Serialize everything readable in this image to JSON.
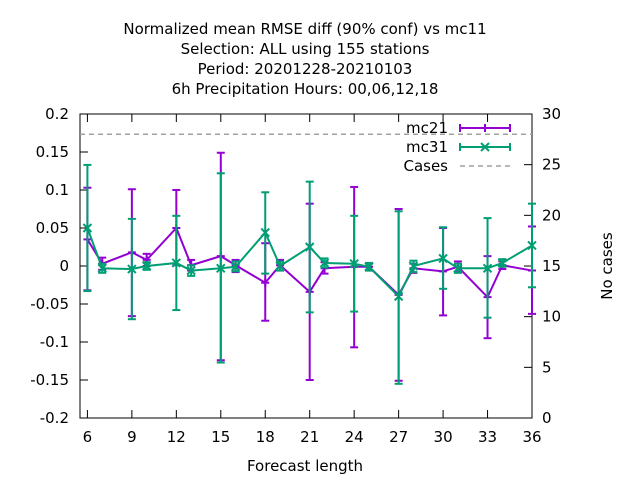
{
  "chart_data": {
    "type": "line",
    "title_lines": [
      "Normalized mean RMSE diff (90% conf) vs mc11",
      "Selection: ALL using   155 stations",
      "Period: 20201228-20210103",
      "6h Precipitation   Hours:  00,06,12,18"
    ],
    "xlabel": "Forecast length",
    "y2label": "No cases",
    "xlim": [
      5.5,
      36
    ],
    "ylim": [
      -0.2,
      0.2
    ],
    "y2lim": [
      0,
      30
    ],
    "x_ticks": [
      6,
      9,
      12,
      15,
      18,
      21,
      24,
      27,
      30,
      33,
      36
    ],
    "y_ticks": [
      -0.2,
      -0.15,
      -0.1,
      -0.05,
      0,
      0.05,
      0.1,
      0.15,
      0.2
    ],
    "y_tick_labels": [
      "-0.2",
      "-0.15",
      "-0.1",
      "-0.05",
      "0",
      "0.05",
      "0.1",
      "0.15",
      "0.2"
    ],
    "y2_ticks": [
      0,
      5,
      10,
      15,
      20,
      25,
      30
    ],
    "legend_position": "top-right",
    "grid": false,
    "series": [
      {
        "name": "mc21",
        "color": "#9400d3",
        "marker": "plus",
        "points": [
          {
            "x": 6,
            "y": 0.035,
            "lo": -0.032,
            "hi": 0.103
          },
          {
            "x": 7,
            "y": 0.003,
            "lo": -0.005,
            "hi": 0.011
          },
          {
            "x": 9,
            "y": 0.018,
            "lo": -0.066,
            "hi": 0.101
          },
          {
            "x": 10,
            "y": 0.008,
            "lo": 0.0,
            "hi": 0.016
          },
          {
            "x": 12,
            "y": 0.05,
            "lo": 0.001,
            "hi": 0.1
          },
          {
            "x": 13,
            "y": 0.001,
            "lo": -0.006,
            "hi": 0.008
          },
          {
            "x": 15,
            "y": 0.013,
            "lo": -0.124,
            "hi": 0.149
          },
          {
            "x": 16,
            "y": 0.001,
            "lo": -0.008,
            "hi": 0.008
          },
          {
            "x": 18,
            "y": -0.022,
            "lo": -0.072,
            "hi": 0.03
          },
          {
            "x": 19,
            "y": 0.001,
            "lo": -0.006,
            "hi": 0.008
          },
          {
            "x": 21,
            "y": -0.034,
            "lo": -0.15,
            "hi": 0.082
          },
          {
            "x": 22,
            "y": -0.003,
            "lo": -0.01,
            "hi": 0.005
          },
          {
            "x": 24,
            "y": -0.001,
            "lo": -0.107,
            "hi": 0.104
          },
          {
            "x": 25,
            "y": -0.001,
            "lo": -0.006,
            "hi": 0.004
          },
          {
            "x": 27,
            "y": -0.038,
            "lo": -0.151,
            "hi": 0.075
          },
          {
            "x": 28,
            "y": -0.003,
            "lo": -0.009,
            "hi": 0.003
          },
          {
            "x": 30,
            "y": -0.007,
            "lo": -0.065,
            "hi": 0.05
          },
          {
            "x": 31,
            "y": -0.001,
            "lo": -0.008,
            "hi": 0.006
          },
          {
            "x": 33,
            "y": -0.041,
            "lo": -0.095,
            "hi": 0.013
          },
          {
            "x": 34,
            "y": 0.001,
            "lo": -0.004,
            "hi": 0.006
          },
          {
            "x": 36,
            "y": -0.006,
            "lo": -0.063,
            "hi": 0.052
          }
        ]
      },
      {
        "name": "mc31",
        "color": "#009e73",
        "marker": "x",
        "points": [
          {
            "x": 6,
            "y": 0.05,
            "lo": -0.033,
            "hi": 0.133
          },
          {
            "x": 7,
            "y": -0.003,
            "lo": -0.009,
            "hi": 0.003
          },
          {
            "x": 9,
            "y": -0.004,
            "lo": -0.07,
            "hi": 0.062
          },
          {
            "x": 10,
            "y": 0.0,
            "lo": -0.005,
            "hi": 0.005
          },
          {
            "x": 12,
            "y": 0.004,
            "lo": -0.058,
            "hi": 0.066
          },
          {
            "x": 13,
            "y": -0.006,
            "lo": -0.013,
            "hi": 0.001
          },
          {
            "x": 15,
            "y": -0.003,
            "lo": -0.127,
            "hi": 0.122
          },
          {
            "x": 16,
            "y": -0.001,
            "lo": -0.007,
            "hi": 0.006
          },
          {
            "x": 18,
            "y": 0.044,
            "lo": -0.01,
            "hi": 0.097
          },
          {
            "x": 19,
            "y": 0.0,
            "lo": -0.006,
            "hi": 0.006
          },
          {
            "x": 21,
            "y": 0.025,
            "lo": -0.061,
            "hi": 0.111
          },
          {
            "x": 22,
            "y": 0.004,
            "lo": -0.002,
            "hi": 0.01
          },
          {
            "x": 24,
            "y": 0.003,
            "lo": -0.06,
            "hi": 0.066
          },
          {
            "x": 25,
            "y": -0.001,
            "lo": -0.006,
            "hi": 0.004
          },
          {
            "x": 27,
            "y": -0.04,
            "lo": -0.155,
            "hi": 0.072
          },
          {
            "x": 28,
            "y": 0.0,
            "lo": -0.008,
            "hi": 0.007
          },
          {
            "x": 30,
            "y": 0.01,
            "lo": -0.03,
            "hi": 0.051
          },
          {
            "x": 31,
            "y": -0.003,
            "lo": -0.009,
            "hi": 0.003
          },
          {
            "x": 33,
            "y": -0.003,
            "lo": -0.068,
            "hi": 0.063
          },
          {
            "x": 34,
            "y": 0.004,
            "lo": -0.001,
            "hi": 0.009
          },
          {
            "x": 36,
            "y": 0.027,
            "lo": -0.028,
            "hi": 0.082
          }
        ]
      }
    ],
    "cases": {
      "name": "Cases",
      "color": "#a0a0a0",
      "style": "dashed",
      "value": 28
    }
  }
}
